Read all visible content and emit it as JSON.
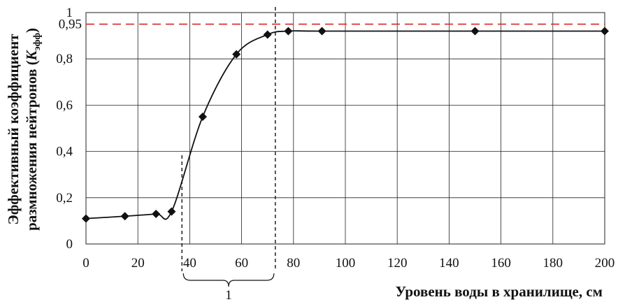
{
  "chart_data": {
    "type": "line",
    "title": "",
    "xlabel": "Уровень воды в хранилище, см",
    "ylabel_line1": "Эффективный коэффициент",
    "ylabel_line2_prefix": "размножения нейтронов (",
    "ylabel_symbol": "K",
    "ylabel_subscript": "эфф",
    "ylabel_line2_suffix": ")",
    "xlim": [
      0,
      200
    ],
    "ylim": [
      0,
      1
    ],
    "x_ticks": [
      "0",
      "20",
      "40",
      "60",
      "80",
      "100",
      "120",
      "140",
      "160",
      "180",
      "200"
    ],
    "y_ticks": [
      "0",
      "0,2",
      "0,4",
      "0,6",
      "0,8",
      "1"
    ],
    "grid": true,
    "series": [
      {
        "x": [
          0,
          15,
          27,
          33,
          45,
          58,
          70,
          78,
          91,
          150,
          200
        ],
        "y": [
          0.11,
          0.12,
          0.13,
          0.14,
          0.55,
          0.82,
          0.905,
          0.92,
          0.92,
          0.92,
          0.92
        ],
        "color": "#111111",
        "marker": "diamond"
      }
    ],
    "reference_line": {
      "y": 0.95,
      "label": "0,95",
      "color": "#d62728"
    },
    "vertical_markers": [
      37,
      73
    ],
    "bracket_label": "1"
  }
}
